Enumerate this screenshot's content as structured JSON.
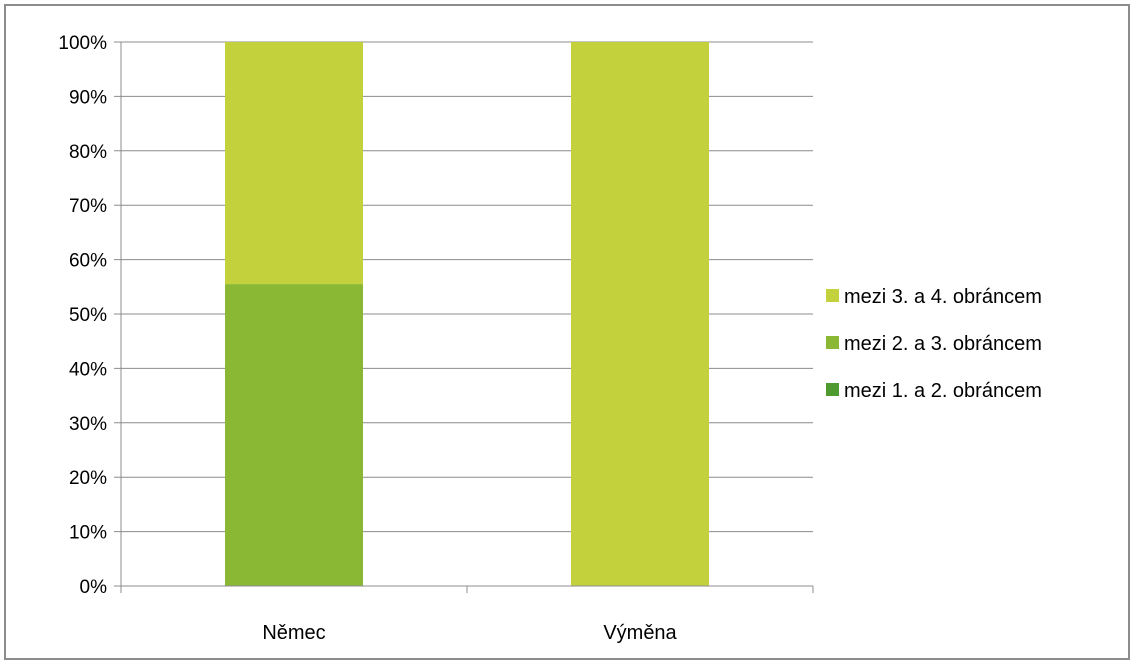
{
  "chart_data": {
    "type": "bar",
    "stacked": "percent",
    "categories": [
      "Němec",
      "Výměna"
    ],
    "series": [
      {
        "name": "mezi 1. a 2. obráncem",
        "color": "#4e9a2e",
        "values": [
          0,
          0
        ]
      },
      {
        "name": "mezi 2. a 3. obráncem",
        "color": "#8ab835",
        "values": [
          55.5,
          0
        ]
      },
      {
        "name": "mezi 3. a 4. obráncem",
        "color": "#c3d13c",
        "values": [
          44.5,
          100
        ]
      }
    ],
    "yticks": [
      "0%",
      "10%",
      "20%",
      "30%",
      "40%",
      "50%",
      "60%",
      "70%",
      "80%",
      "90%",
      "100%"
    ],
    "ylim": [
      0,
      100
    ],
    "grid": true,
    "gridline_color": "#8c8c8c",
    "legend_position": "right",
    "legend_order": [
      2,
      1,
      0
    ]
  }
}
